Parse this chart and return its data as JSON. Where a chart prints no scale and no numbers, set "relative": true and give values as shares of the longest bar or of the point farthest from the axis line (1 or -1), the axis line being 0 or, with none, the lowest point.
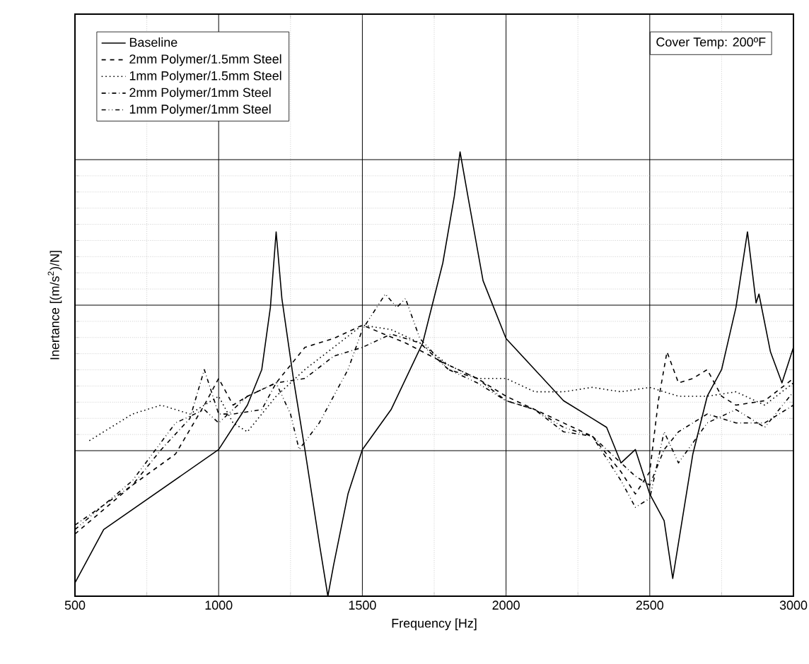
{
  "chart_data": {
    "type": "line",
    "relative": true,
    "xlabel": "Frequency [Hz]",
    "ylabel": "Inertance [(m/s$^{2}$)/N]",
    "annotations": [
      "Cover Temp: 200ºF"
    ],
    "xlim": [
      500,
      3000
    ],
    "xticks": [
      500,
      1000,
      1500,
      2000,
      2500,
      3000
    ],
    "grid": true,
    "legend": "top left",
    "marker": "none",
    "series": [
      {
        "name": "Baseline",
        "color": "#000000",
        "line_style": "solid",
        "x": [
          500,
          600,
          800,
          1000,
          1100,
          1150,
          1180,
          1200,
          1220,
          1260,
          1300,
          1350,
          1380,
          1400,
          1450,
          1500,
          1600,
          1710,
          1780,
          1820,
          1840,
          1870,
          1920,
          2000,
          2100,
          2200,
          2300,
          2350,
          2400,
          2450,
          2500,
          2550,
          2580,
          2610,
          2650,
          2700,
          2750,
          2800,
          2840,
          2870,
          2880,
          2920,
          2960,
          3000
        ],
        "values": [
          0.03,
          0.15,
          0.24,
          0.33,
          0.43,
          0.51,
          0.65,
          0.82,
          0.67,
          0.49,
          0.33,
          0.12,
          0.0,
          0.07,
          0.23,
          0.33,
          0.42,
          0.57,
          0.75,
          0.9,
          1.0,
          0.89,
          0.71,
          0.58,
          0.51,
          0.44,
          0.4,
          0.38,
          0.3,
          0.33,
          0.23,
          0.17,
          0.04,
          0.16,
          0.32,
          0.45,
          0.51,
          0.65,
          0.82,
          0.66,
          0.68,
          0.55,
          0.48,
          0.56
        ]
      },
      {
        "name": "2mm Polymer/1.5mm Steel",
        "color": "#000000",
        "line_style": "dashed",
        "x": [
          500,
          700,
          850,
          950,
          1000,
          1050,
          1100,
          1200,
          1300,
          1400,
          1500,
          1650,
          1800,
          1900,
          2000,
          2100,
          2200,
          2300,
          2400,
          2450,
          2500,
          2530,
          2560,
          2600,
          2650,
          2700,
          2750,
          2800,
          2900,
          3000
        ],
        "values": [
          0.14,
          0.25,
          0.32,
          0.43,
          0.49,
          0.43,
          0.45,
          0.48,
          0.56,
          0.58,
          0.61,
          0.57,
          0.52,
          0.49,
          0.45,
          0.42,
          0.39,
          0.36,
          0.28,
          0.23,
          0.28,
          0.44,
          0.55,
          0.48,
          0.49,
          0.51,
          0.45,
          0.43,
          0.44,
          0.49
        ]
      },
      {
        "name": "1mm Polymer/1.5mm Steel",
        "color": "#000000",
        "line_style": "dotted",
        "x": [
          550,
          700,
          800,
          900,
          1000,
          1050,
          1100,
          1200,
          1300,
          1400,
          1500,
          1600,
          1700,
          1800,
          1900,
          2000,
          2100,
          2200,
          2300,
          2400,
          2500,
          2600,
          2700,
          2800,
          2900,
          3000
        ],
        "values": [
          0.35,
          0.41,
          0.43,
          0.41,
          0.45,
          0.39,
          0.37,
          0.45,
          0.51,
          0.56,
          0.61,
          0.6,
          0.57,
          0.52,
          0.49,
          0.49,
          0.46,
          0.46,
          0.47,
          0.46,
          0.47,
          0.45,
          0.45,
          0.46,
          0.43,
          0.48
        ]
      },
      {
        "name": "2mm Polymer/1mm Steel",
        "color": "#000000",
        "line_style": "dashdotted",
        "x": [
          500,
          700,
          800,
          900,
          950,
          1000,
          1050,
          1150,
          1200,
          1300,
          1400,
          1500,
          1600,
          1700,
          1800,
          1900,
          2000,
          2100,
          2200,
          2300,
          2400,
          2450,
          2500,
          2550,
          2600,
          2700,
          2800,
          2900,
          3000
        ],
        "values": [
          0.16,
          0.25,
          0.33,
          0.4,
          0.51,
          0.41,
          0.41,
          0.42,
          0.48,
          0.49,
          0.54,
          0.56,
          0.59,
          0.57,
          0.51,
          0.49,
          0.44,
          0.42,
          0.37,
          0.36,
          0.3,
          0.27,
          0.25,
          0.33,
          0.37,
          0.41,
          0.39,
          0.39,
          0.43
        ]
      },
      {
        "name": "1mm Polymer/1mm Steel",
        "color": "#000000",
        "line_style": "dashdotdotted",
        "x": [
          500,
          700,
          850,
          950,
          1000,
          1100,
          1200,
          1250,
          1280,
          1350,
          1400,
          1450,
          1500,
          1580,
          1620,
          1650,
          1700,
          1800,
          1900,
          2000,
          2100,
          2200,
          2300,
          2400,
          2450,
          2500,
          2550,
          2600,
          2700,
          2800,
          2900,
          3000
        ],
        "values": [
          0.15,
          0.26,
          0.39,
          0.42,
          0.39,
          0.45,
          0.48,
          0.41,
          0.33,
          0.39,
          0.45,
          0.51,
          0.6,
          0.68,
          0.65,
          0.67,
          0.58,
          0.51,
          0.48,
          0.44,
          0.42,
          0.38,
          0.36,
          0.26,
          0.2,
          0.22,
          0.37,
          0.3,
          0.39,
          0.42,
          0.38,
          0.46
        ]
      }
    ]
  }
}
